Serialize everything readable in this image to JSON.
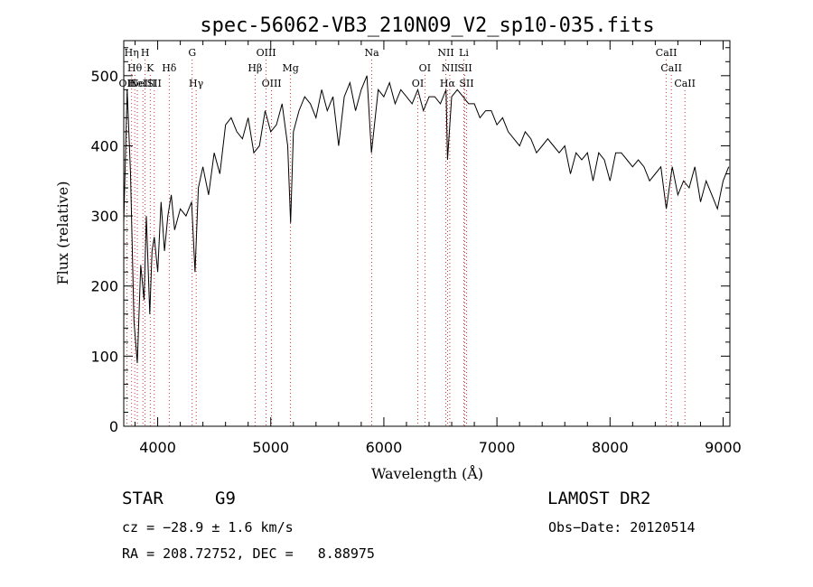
{
  "chart_data": {
    "type": "line",
    "title": "spec-56062-VB3_210N09_V2_sp10-035.fits",
    "xlabel": "Wavelength (Å)",
    "ylabel": "Flux (relative)",
    "xlim": [
      3700,
      9060
    ],
    "ylim": [
      0,
      550
    ],
    "x_ticks": [
      4000,
      5000,
      6000,
      7000,
      8000,
      9000
    ],
    "y_ticks": [
      0,
      100,
      200,
      300,
      400,
      500
    ],
    "x_tick_labels": [
      "4000",
      "5000",
      "6000",
      "7000",
      "8000",
      "9000"
    ],
    "y_tick_labels": [
      "0",
      "100",
      "200",
      "300",
      "400",
      "500"
    ],
    "grid": false,
    "line_color": "#000000",
    "marker_line_color": "#cc0000",
    "series": [
      {
        "x": [
          3700,
          3730,
          3760,
          3790,
          3820,
          3850,
          3880,
          3900,
          3930,
          3950,
          3970,
          4000,
          4030,
          4060,
          4090,
          4120,
          4150,
          4200,
          4250,
          4300,
          4330,
          4360,
          4400,
          4450,
          4500,
          4550,
          4600,
          4650,
          4700,
          4750,
          4800,
          4850,
          4900,
          4950,
          5000,
          5050,
          5100,
          5150,
          5175,
          5200,
          5250,
          5300,
          5350,
          5400,
          5450,
          5500,
          5550,
          5600,
          5650,
          5700,
          5750,
          5800,
          5850,
          5890,
          5950,
          6000,
          6050,
          6100,
          6150,
          6200,
          6250,
          6300,
          6350,
          6400,
          6450,
          6500,
          6550,
          6563,
          6600,
          6650,
          6700,
          6750,
          6800,
          6850,
          6900,
          6950,
          7000,
          7050,
          7100,
          7150,
          7200,
          7250,
          7300,
          7350,
          7400,
          7450,
          7500,
          7550,
          7600,
          7650,
          7700,
          7750,
          7800,
          7850,
          7900,
          7950,
          8000,
          8050,
          8100,
          8150,
          8200,
          8250,
          8300,
          8350,
          8400,
          8450,
          8498,
          8550,
          8600,
          8650,
          8700,
          8750,
          8800,
          8850,
          8900,
          8950,
          9000,
          9050
        ],
        "y": [
          290,
          480,
          360,
          150,
          90,
          230,
          180,
          300,
          160,
          250,
          270,
          220,
          320,
          250,
          300,
          330,
          280,
          310,
          300,
          320,
          220,
          340,
          370,
          330,
          390,
          360,
          430,
          440,
          420,
          410,
          440,
          390,
          400,
          450,
          420,
          430,
          460,
          400,
          290,
          420,
          450,
          470,
          460,
          440,
          480,
          450,
          470,
          400,
          470,
          490,
          450,
          480,
          500,
          390,
          480,
          470,
          490,
          460,
          480,
          470,
          460,
          480,
          450,
          470,
          470,
          460,
          480,
          380,
          470,
          480,
          470,
          460,
          460,
          440,
          450,
          450,
          430,
          440,
          420,
          410,
          400,
          420,
          410,
          390,
          400,
          410,
          400,
          390,
          400,
          360,
          390,
          380,
          390,
          350,
          390,
          380,
          350,
          390,
          390,
          380,
          370,
          380,
          370,
          350,
          360,
          370,
          310,
          370,
          330,
          350,
          340,
          370,
          320,
          350,
          330,
          310,
          350,
          370
        ]
      }
    ],
    "line_markers": [
      {
        "wave": 3727,
        "label": "OII",
        "row": 3
      },
      {
        "wave": 3770,
        "label": "Hη",
        "row": 1
      },
      {
        "wave": 3797,
        "label": "Hθ",
        "row": 2
      },
      {
        "wave": 3820,
        "label": "HeI",
        "row": 3
      },
      {
        "wave": 3869,
        "label": "NeIII",
        "row": 3
      },
      {
        "wave": 3889,
        "label": "H",
        "row": 1
      },
      {
        "wave": 3934,
        "label": "K",
        "row": 2
      },
      {
        "wave": 3970,
        "label": "SII",
        "row": 3
      },
      {
        "wave": 4102,
        "label": "Hδ",
        "row": 2
      },
      {
        "wave": 4305,
        "label": "G",
        "row": 1
      },
      {
        "wave": 4340,
        "label": "Hγ",
        "row": 3
      },
      {
        "wave": 4861,
        "label": "Hβ",
        "row": 2
      },
      {
        "wave": 4959,
        "label": "OIII",
        "row": 1
      },
      {
        "wave": 5007,
        "label": "OIII",
        "row": 3
      },
      {
        "wave": 5175,
        "label": "Mg",
        "row": 2
      },
      {
        "wave": 5893,
        "label": "Na",
        "row": 1
      },
      {
        "wave": 6300,
        "label": "OI",
        "row": 3
      },
      {
        "wave": 6363,
        "label": "OI",
        "row": 2
      },
      {
        "wave": 6548,
        "label": "NII",
        "row": 1
      },
      {
        "wave": 6563,
        "label": "Hα",
        "row": 3
      },
      {
        "wave": 6583,
        "label": "NII",
        "row": 2
      },
      {
        "wave": 6707,
        "label": "Li",
        "row": 1
      },
      {
        "wave": 6716,
        "label": "SII",
        "row": 2
      },
      {
        "wave": 6731,
        "label": "SII",
        "row": 3
      },
      {
        "wave": 8498,
        "label": "CaII",
        "row": 1
      },
      {
        "wave": 8542,
        "label": "CaII",
        "row": 2
      },
      {
        "wave": 8662,
        "label": "CaII",
        "row": 3
      }
    ]
  },
  "info": {
    "object_class": "STAR",
    "subclass": "G9",
    "survey": "LAMOST DR2",
    "cz_line": "cz = −28.9 ± 1.6 km/s",
    "obs_date_line": "Obs−Date: 20120514",
    "coords_line": "RA = 208.72752, DEC =   8.88975"
  }
}
